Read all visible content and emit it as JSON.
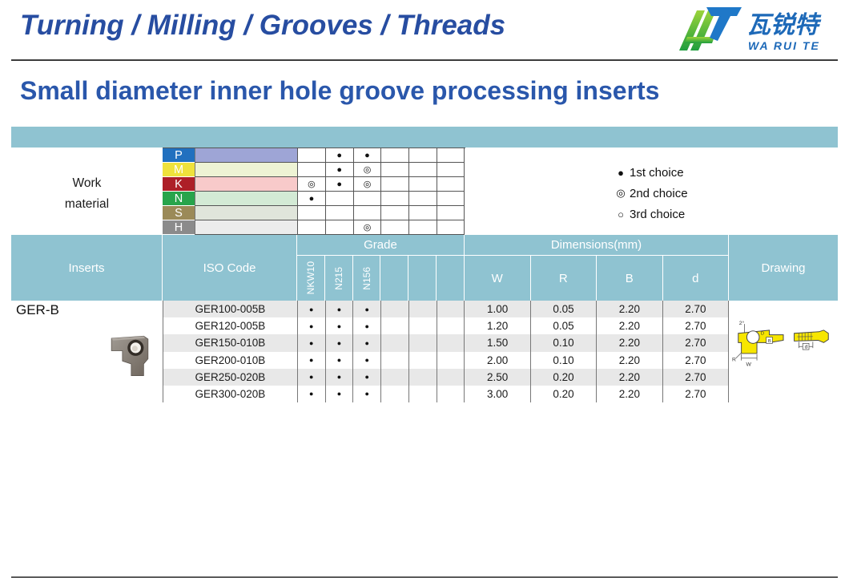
{
  "header": {
    "title": "Turning / Milling / Grooves / Threads",
    "logo": {
      "chinese": "瓦锐特",
      "latin": "WA RUI TE"
    }
  },
  "page_title": "Small diameter inner hole groove processing inserts",
  "work_material": {
    "label_line1": "Work",
    "label_line2": "material",
    "rows": [
      {
        "letter": "P",
        "letter_color": "#2170bf",
        "band_color": "#9ea5d6",
        "marks": [
          "",
          "●",
          "●",
          "",
          "",
          ""
        ]
      },
      {
        "letter": "M",
        "letter_color": "#efe23c",
        "band_color": "#eef3d4",
        "marks": [
          "",
          "●",
          "◎",
          "",
          "",
          ""
        ]
      },
      {
        "letter": "K",
        "letter_color": "#ad1f27",
        "band_color": "#f8caca",
        "marks": [
          "◎",
          "●",
          "◎",
          "",
          "",
          ""
        ]
      },
      {
        "letter": "N",
        "letter_color": "#27a44b",
        "band_color": "#d3ead5",
        "marks": [
          "●",
          "",
          "",
          "",
          "",
          ""
        ]
      },
      {
        "letter": "S",
        "letter_color": "#9b8a58",
        "band_color": "#e0e5db",
        "marks": [
          "",
          "",
          "",
          "",
          "",
          ""
        ]
      },
      {
        "letter": "H",
        "letter_color": "#8b8b8b",
        "band_color": "#ececec",
        "marks": [
          "",
          "",
          "◎",
          "",
          "",
          ""
        ]
      }
    ]
  },
  "legend": [
    {
      "symbol": "●",
      "label": "1st choice"
    },
    {
      "symbol": "◎",
      "label": "2nd choice"
    },
    {
      "symbol": "○",
      "label": "3rd choice"
    }
  ],
  "table": {
    "headers": {
      "inserts": "Inserts",
      "iso_code": "ISO Code",
      "grade": "Grade",
      "dimensions": "Dimensions(mm)",
      "drawing": "Drawing",
      "grade_cols": [
        "NKW10",
        "N215",
        "N156",
        "",
        "",
        ""
      ],
      "dim_cols": [
        "W",
        "R",
        "B",
        "d"
      ]
    },
    "series_label": "GER-B",
    "rows": [
      {
        "iso": "GER100-005B",
        "marks": [
          "●",
          "●",
          "●",
          "",
          "",
          ""
        ],
        "dims": [
          "1.00",
          "0.05",
          "2.20",
          "2.70"
        ]
      },
      {
        "iso": "GER120-005B",
        "marks": [
          "●",
          "●",
          "●",
          "",
          "",
          ""
        ],
        "dims": [
          "1.20",
          "0.05",
          "2.20",
          "2.70"
        ]
      },
      {
        "iso": "GER150-010B",
        "marks": [
          "●",
          "●",
          "●",
          "",
          "",
          ""
        ],
        "dims": [
          "1.50",
          "0.10",
          "2.20",
          "2.70"
        ]
      },
      {
        "iso": "GER200-010B",
        "marks": [
          "●",
          "●",
          "●",
          "",
          "",
          ""
        ],
        "dims": [
          "2.00",
          "0.10",
          "2.20",
          "2.70"
        ]
      },
      {
        "iso": "GER250-020B",
        "marks": [
          "●",
          "●",
          "●",
          "",
          "",
          ""
        ],
        "dims": [
          "2.50",
          "0.20",
          "2.20",
          "2.70"
        ]
      },
      {
        "iso": "GER300-020B",
        "marks": [
          "●",
          "●",
          "●",
          "",
          "",
          ""
        ],
        "dims": [
          "3.00",
          "0.20",
          "2.20",
          "2.70"
        ]
      }
    ]
  },
  "drawing_labels": {
    "angle": "2°",
    "d_label": "D",
    "b_label": "B",
    "r_label": "R",
    "w_label": "W",
    "d2_label": "d"
  },
  "colors": {
    "teal_header": "#8fc3d1",
    "title_blue": "#274da1",
    "subtitle_blue": "#2a57ab",
    "stripe_gray": "#e8e8e8",
    "drawing_yellow": "#f7e600",
    "logo_green": "#3fae3c",
    "logo_blue": "#1f78c8"
  }
}
